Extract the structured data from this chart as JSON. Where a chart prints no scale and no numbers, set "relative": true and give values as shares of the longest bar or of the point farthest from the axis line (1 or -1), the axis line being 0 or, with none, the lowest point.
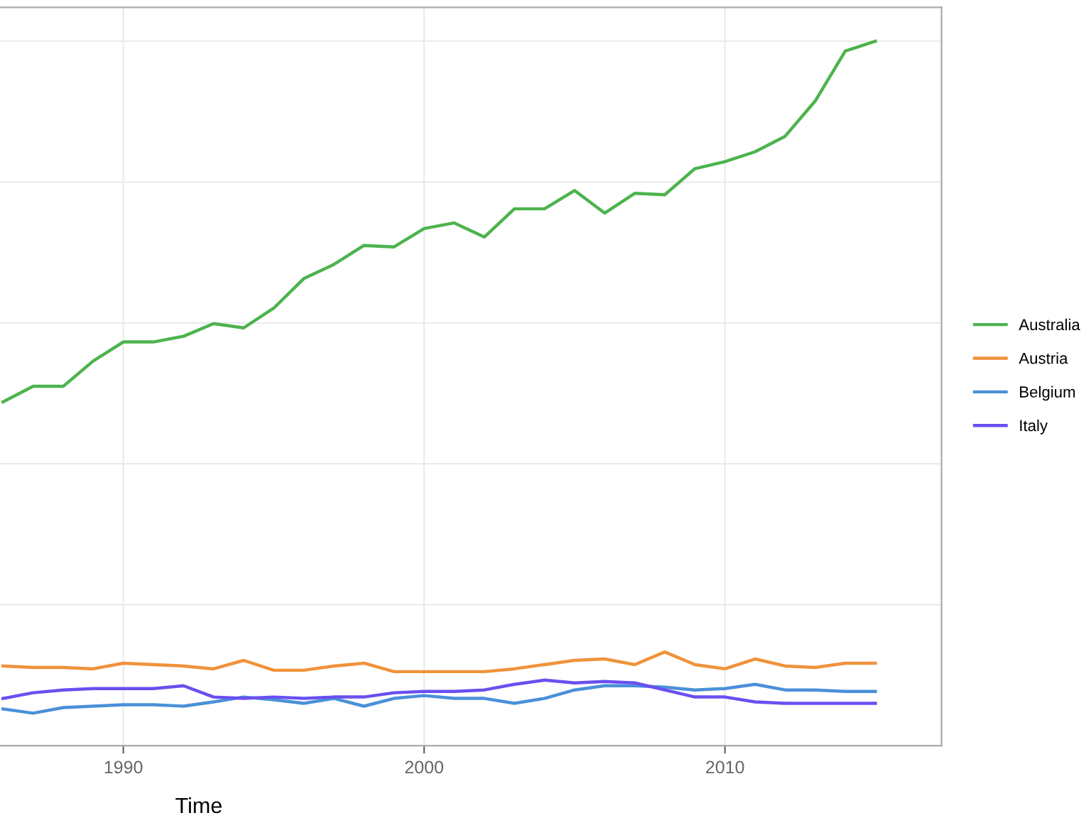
{
  "chart_data": {
    "type": "line",
    "xlabel": "Time",
    "relative": true,
    "x": [
      1986,
      1987,
      1988,
      1989,
      1990,
      1991,
      1992,
      1993,
      1994,
      1995,
      1996,
      1997,
      1998,
      1999,
      2000,
      2001,
      2002,
      2003,
      2004,
      2005,
      2006,
      2007,
      2008,
      2009,
      2010,
      2011,
      2012,
      2013,
      2014,
      2015
    ],
    "xlim": [
      1985.9,
      2017.2
    ],
    "xticks": [
      1990,
      2000,
      2010
    ],
    "grid": true,
    "legend": "right",
    "marker": "none",
    "line_style": "solid",
    "series": [
      {
        "name": "Australia",
        "color": "#4db34d",
        "values": [
          0.488,
          0.51,
          0.51,
          0.546,
          0.573,
          0.573,
          0.581,
          0.599,
          0.593,
          0.621,
          0.663,
          0.683,
          0.71,
          0.708,
          0.734,
          0.742,
          0.722,
          0.762,
          0.762,
          0.788,
          0.756,
          0.784,
          0.782,
          0.819,
          0.829,
          0.843,
          0.865,
          0.915,
          0.986,
          1.0
        ]
      },
      {
        "name": "Austria",
        "color": "#f0923a",
        "values": [
          0.113,
          0.111,
          0.111,
          0.109,
          0.117,
          0.115,
          0.113,
          0.109,
          0.121,
          0.107,
          0.107,
          0.113,
          0.117,
          0.105,
          0.105,
          0.105,
          0.105,
          0.109,
          0.115,
          0.121,
          0.123,
          0.115,
          0.133,
          0.115,
          0.109,
          0.123,
          0.113,
          0.111,
          0.117,
          0.117
        ]
      },
      {
        "name": "Belgium",
        "color": "#4a90d9",
        "values": [
          0.052,
          0.046,
          0.054,
          0.056,
          0.058,
          0.058,
          0.056,
          0.062,
          0.069,
          0.065,
          0.06,
          0.067,
          0.056,
          0.067,
          0.071,
          0.067,
          0.067,
          0.06,
          0.067,
          0.079,
          0.085,
          0.085,
          0.083,
          0.079,
          0.081,
          0.087,
          0.079,
          0.079,
          0.077,
          0.077
        ]
      },
      {
        "name": "Italy",
        "color": "#6a4ff0",
        "values": [
          0.067,
          0.075,
          0.079,
          0.081,
          0.081,
          0.081,
          0.085,
          0.069,
          0.067,
          0.069,
          0.067,
          0.069,
          0.069,
          0.075,
          0.077,
          0.077,
          0.079,
          0.087,
          0.093,
          0.089,
          0.091,
          0.089,
          0.079,
          0.069,
          0.069,
          0.062,
          0.06,
          0.06,
          0.06,
          0.06
        ]
      }
    ]
  }
}
